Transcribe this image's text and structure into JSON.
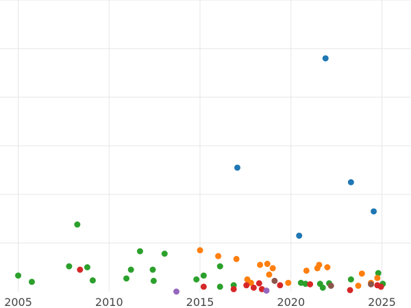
{
  "chart_data": {
    "type": "scatter",
    "title": "",
    "xlabel": "",
    "ylabel": "",
    "xlim": [
      2004.0,
      2026.6
    ],
    "ylim": [
      0,
      6.0
    ],
    "xticks": [
      2005,
      2010,
      2015,
      2020,
      2025
    ],
    "xtick_labels": [
      "2005",
      "2010",
      "2015",
      "2020",
      "2025"
    ],
    "grid": true,
    "legend": "none",
    "series": [
      {
        "color": "#1f77b4",
        "points": [
          {
            "x": 2021.9,
            "y": 4.8
          },
          {
            "x": 2017.05,
            "y": 2.55
          },
          {
            "x": 2023.3,
            "y": 2.25
          },
          {
            "x": 2024.55,
            "y": 1.65
          },
          {
            "x": 2020.45,
            "y": 1.15
          }
        ]
      },
      {
        "color": "#2ca02c",
        "points": [
          {
            "x": 2005.0,
            "y": 0.33
          },
          {
            "x": 2005.75,
            "y": 0.2
          },
          {
            "x": 2007.8,
            "y": 0.52
          },
          {
            "x": 2008.25,
            "y": 1.38
          },
          {
            "x": 2008.8,
            "y": 0.5
          },
          {
            "x": 2009.1,
            "y": 0.23
          },
          {
            "x": 2010.95,
            "y": 0.27
          },
          {
            "x": 2011.2,
            "y": 0.45
          },
          {
            "x": 2011.7,
            "y": 0.83
          },
          {
            "x": 2012.4,
            "y": 0.45
          },
          {
            "x": 2012.45,
            "y": 0.22
          },
          {
            "x": 2013.05,
            "y": 0.78
          },
          {
            "x": 2014.8,
            "y": 0.25
          },
          {
            "x": 2015.2,
            "y": 0.33
          },
          {
            "x": 2016.1,
            "y": 0.52
          },
          {
            "x": 2016.1,
            "y": 0.1
          },
          {
            "x": 2016.85,
            "y": 0.13
          },
          {
            "x": 2020.55,
            "y": 0.18
          },
          {
            "x": 2020.8,
            "y": 0.16
          },
          {
            "x": 2021.6,
            "y": 0.16
          },
          {
            "x": 2021.75,
            "y": 0.08
          },
          {
            "x": 2022.1,
            "y": 0.17
          },
          {
            "x": 2023.3,
            "y": 0.25
          },
          {
            "x": 2024.8,
            "y": 0.38
          },
          {
            "x": 2025.05,
            "y": 0.16
          }
        ]
      },
      {
        "color": "#ff7f0e",
        "points": [
          {
            "x": 2015.0,
            "y": 0.85
          },
          {
            "x": 2016.0,
            "y": 0.73
          },
          {
            "x": 2017.0,
            "y": 0.67
          },
          {
            "x": 2017.6,
            "y": 0.25
          },
          {
            "x": 2017.8,
            "y": 0.18
          },
          {
            "x": 2018.3,
            "y": 0.55
          },
          {
            "x": 2018.7,
            "y": 0.57
          },
          {
            "x": 2018.8,
            "y": 0.35
          },
          {
            "x": 2019.0,
            "y": 0.48
          },
          {
            "x": 2019.85,
            "y": 0.18
          },
          {
            "x": 2020.85,
            "y": 0.43
          },
          {
            "x": 2021.45,
            "y": 0.48
          },
          {
            "x": 2021.55,
            "y": 0.55
          },
          {
            "x": 2022.0,
            "y": 0.5
          },
          {
            "x": 2023.7,
            "y": 0.12
          },
          {
            "x": 2023.9,
            "y": 0.37
          },
          {
            "x": 2024.4,
            "y": 0.18
          },
          {
            "x": 2024.75,
            "y": 0.28
          }
        ]
      },
      {
        "color": "#d62728",
        "points": [
          {
            "x": 2008.4,
            "y": 0.45
          },
          {
            "x": 2015.2,
            "y": 0.1
          },
          {
            "x": 2016.85,
            "y": 0.05
          },
          {
            "x": 2017.55,
            "y": 0.13
          },
          {
            "x": 2017.95,
            "y": 0.08
          },
          {
            "x": 2018.25,
            "y": 0.17
          },
          {
            "x": 2018.4,
            "y": 0.05
          },
          {
            "x": 2019.4,
            "y": 0.13
          },
          {
            "x": 2021.05,
            "y": 0.15
          },
          {
            "x": 2023.25,
            "y": 0.03
          },
          {
            "x": 2024.75,
            "y": 0.13
          },
          {
            "x": 2024.95,
            "y": 0.1
          }
        ]
      },
      {
        "color": "#8c564b",
        "points": [
          {
            "x": 2019.1,
            "y": 0.22
          },
          {
            "x": 2022.2,
            "y": 0.12
          },
          {
            "x": 2024.4,
            "y": 0.15
          }
        ]
      },
      {
        "color": "#9467bd",
        "points": [
          {
            "x": 2013.7,
            "y": 0.0
          },
          {
            "x": 2018.65,
            "y": 0.02
          }
        ]
      }
    ]
  }
}
